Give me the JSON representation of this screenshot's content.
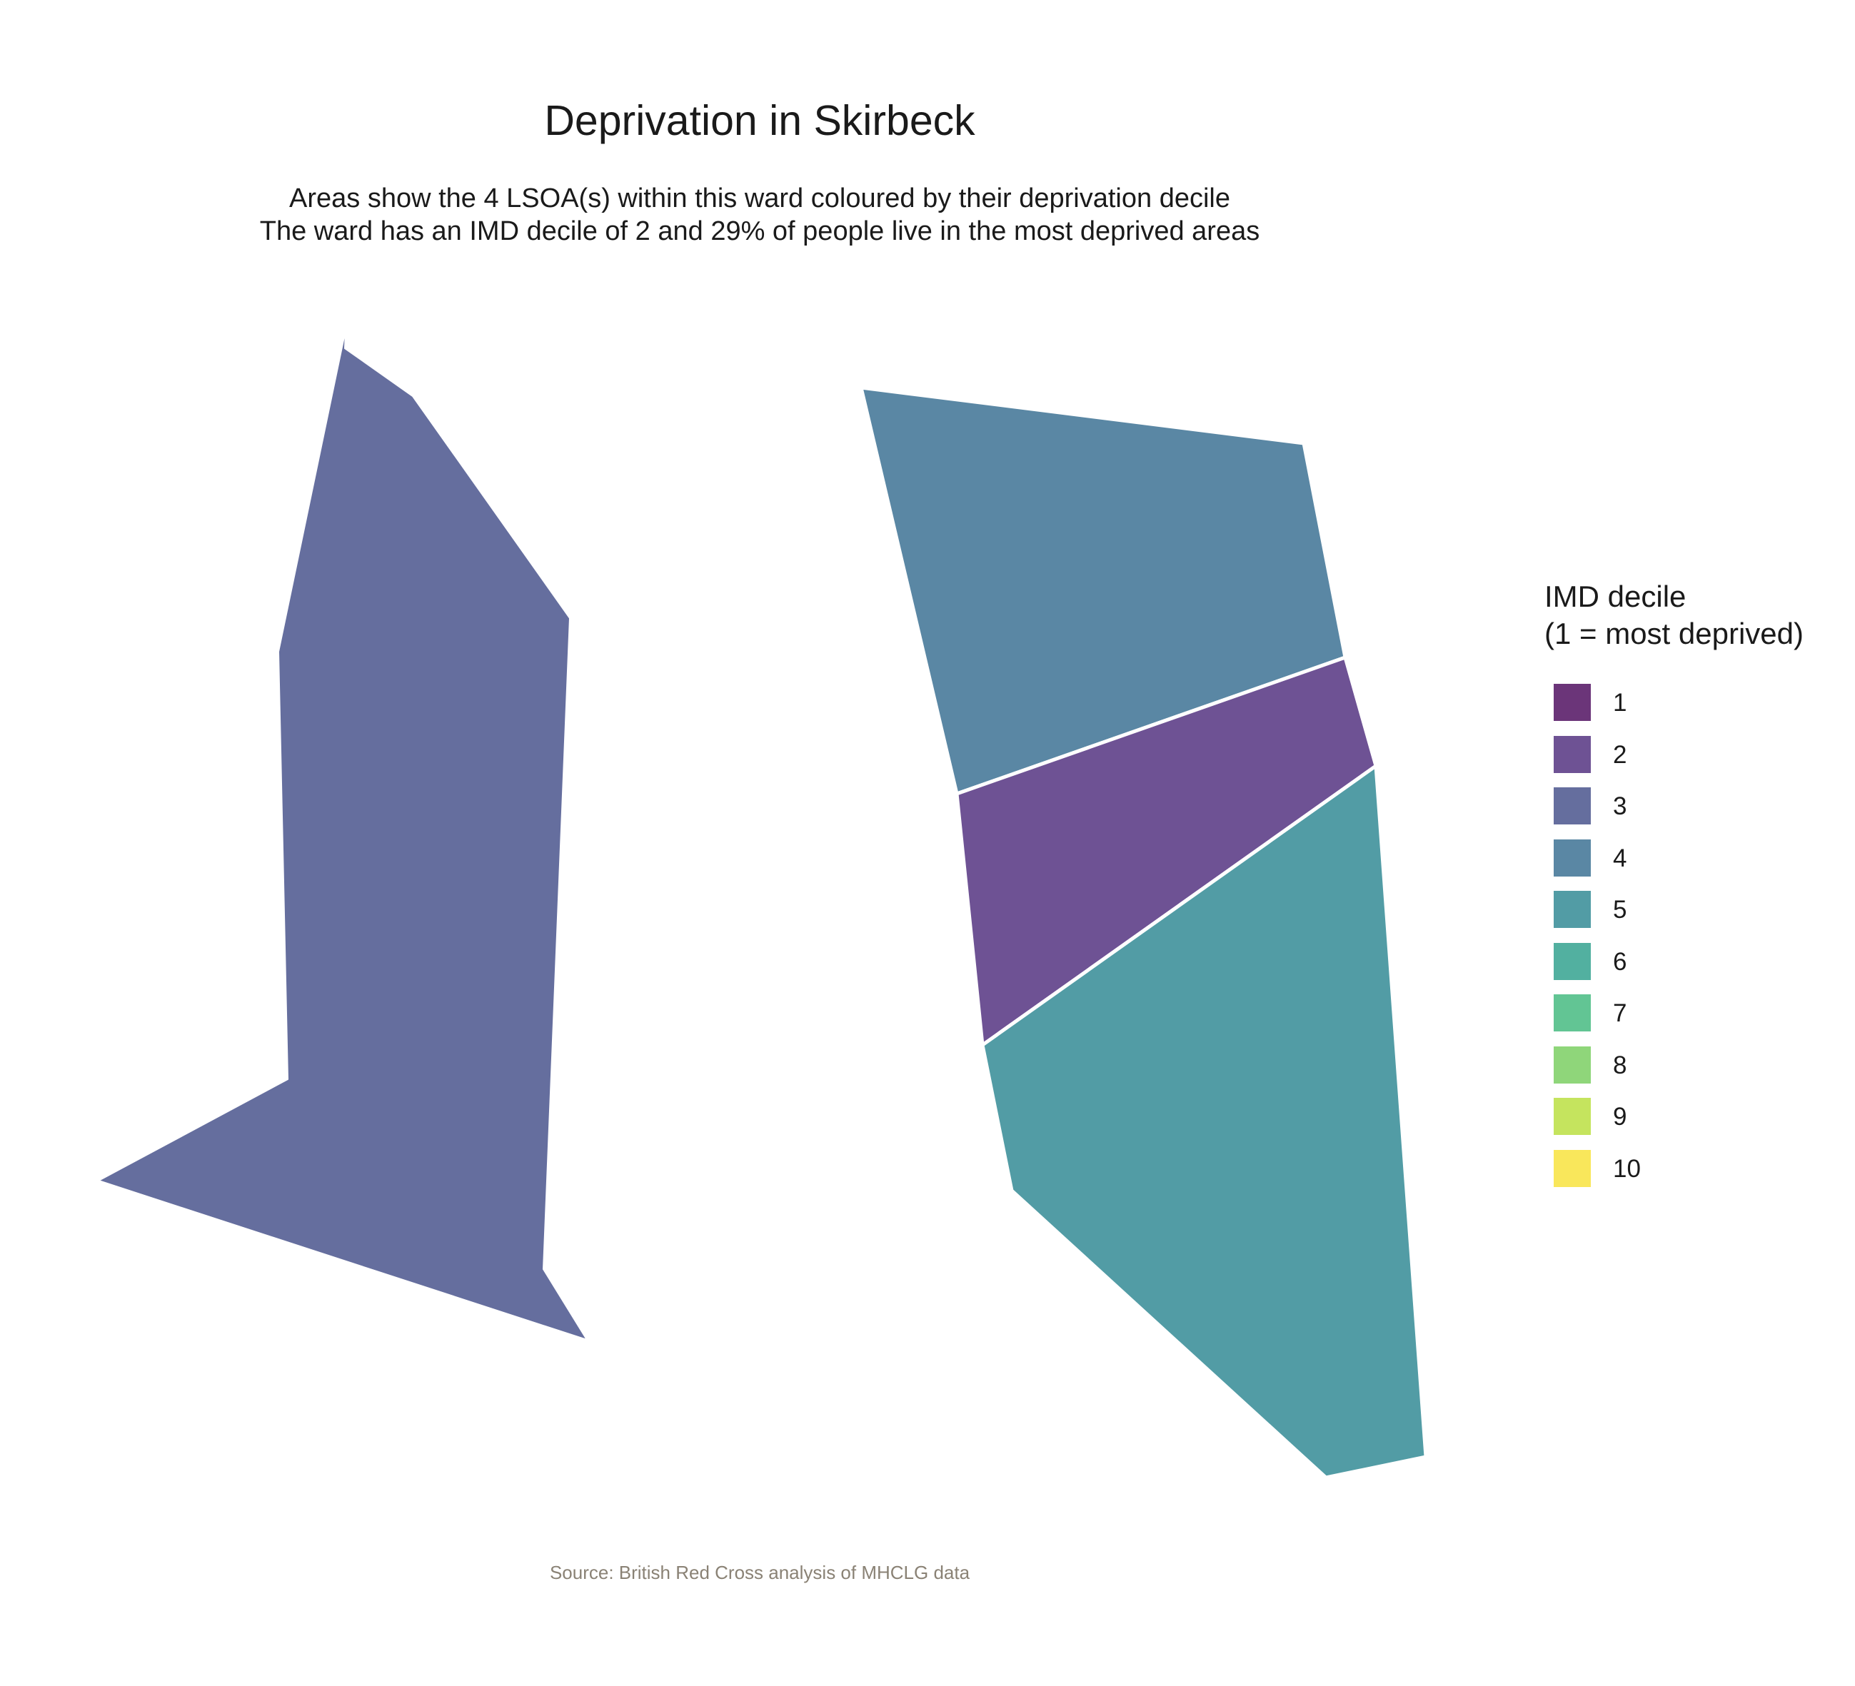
{
  "title": "Deprivation in Skirbeck",
  "subtitle": [
    "Areas show the 4 LSOA(s) within this ward coloured by their deprivation decile",
    "The ward has an IMD decile of 2 and 29% of people live in the most deprived areas"
  ],
  "caption": "Source: British Red Cross analysis of MHCLG data",
  "legend": {
    "title_lines": [
      "IMD decile",
      "(1 = most deprived)"
    ],
    "items": [
      {
        "label": "1",
        "color": "#6b3579"
      },
      {
        "label": "2",
        "color": "#6e5294"
      },
      {
        "label": "3",
        "color": "#656e9e"
      },
      {
        "label": "4",
        "color": "#5a87a4"
      },
      {
        "label": "5",
        "color": "#529ca5"
      },
      {
        "label": "6",
        "color": "#52b0a0"
      },
      {
        "label": "7",
        "color": "#62c594"
      },
      {
        "label": "8",
        "color": "#8fd67a"
      },
      {
        "label": "9",
        "color": "#c5e45e"
      },
      {
        "label": "10",
        "color": "#f9e75b"
      }
    ]
  },
  "areas": [
    {
      "id": "lsoa-west",
      "decile": 3
    },
    {
      "id": "lsoa-east-north",
      "decile": 4
    },
    {
      "id": "lsoa-east-middle",
      "decile": 2
    },
    {
      "id": "lsoa-east-south",
      "decile": 5
    }
  ]
}
